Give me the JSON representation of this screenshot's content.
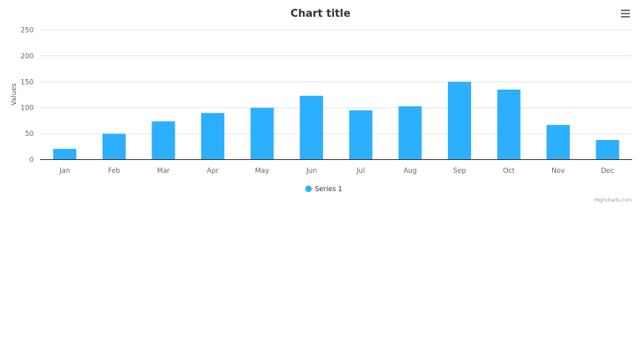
{
  "chart_data": {
    "type": "bar",
    "title": "Chart title",
    "xlabel": "",
    "ylabel": "Values",
    "categories": [
      "Jan",
      "Feb",
      "Mar",
      "Apr",
      "May",
      "Jun",
      "Jul",
      "Aug",
      "Sep",
      "Oct",
      "Nov",
      "Dec"
    ],
    "series": [
      {
        "name": "Series 1",
        "color": "#2caffe",
        "values": [
          21,
          50,
          74,
          90,
          100,
          123,
          95,
          103,
          150,
          135,
          67,
          38
        ]
      }
    ],
    "ylim": [
      0,
      250
    ],
    "yticks": [
      "0",
      "50",
      "100",
      "150",
      "200",
      "250"
    ],
    "grid": true,
    "legend": "bottom-center"
  },
  "menu_icon": "hamburger-menu-icon",
  "credits": "Highcharts.com"
}
